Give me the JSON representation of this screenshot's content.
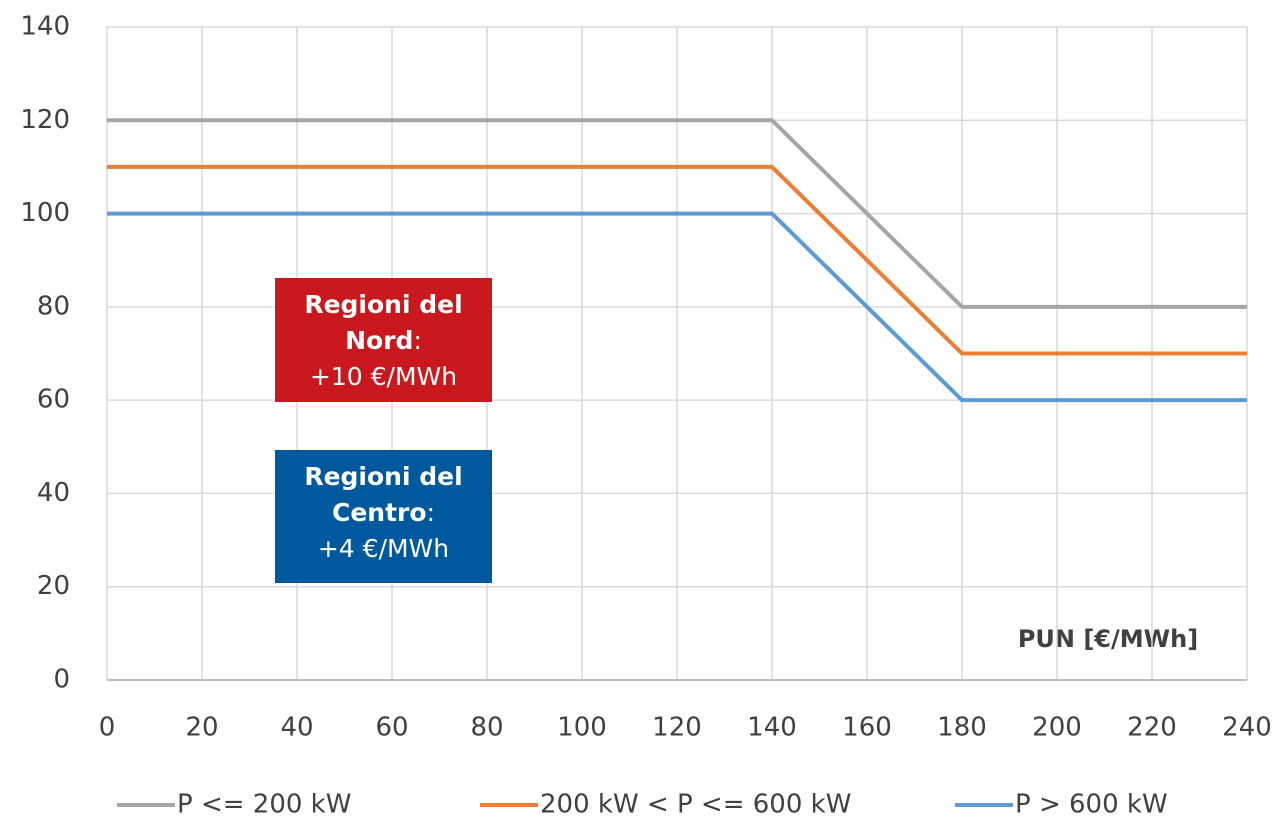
{
  "chart_data": {
    "type": "line",
    "x": [
      0,
      140,
      180,
      240
    ],
    "series": [
      {
        "name": "P <= 200 kW",
        "color": "#a5a5a5",
        "values": [
          120,
          120,
          80,
          80
        ]
      },
      {
        "name": "200 kW < P <= 600 kW",
        "color": "#ed7d31",
        "values": [
          110,
          110,
          70,
          70
        ]
      },
      {
        "name": "P > 600 kW",
        "color": "#5b9bd5",
        "values": [
          100,
          100,
          60,
          60
        ]
      }
    ],
    "xlim": [
      0,
      240
    ],
    "xticks": [
      0,
      20,
      40,
      60,
      80,
      100,
      120,
      140,
      160,
      180,
      200,
      220,
      240
    ],
    "ylim": [
      0,
      140
    ],
    "yticks": [
      0,
      20,
      40,
      60,
      80,
      100,
      120,
      140
    ],
    "grid": true,
    "legend": "bottom",
    "x_label": "PUN [€/MWh]",
    "annotations": [
      {
        "lines": [
          "Regioni del",
          "Nord"
        ],
        "suffix": ":",
        "detail": "+10 €/MWh",
        "color": "#c9191e"
      },
      {
        "lines": [
          "Regioni del",
          "Centro"
        ],
        "suffix": ":",
        "detail": "+4 €/MWh",
        "color": "#00599c"
      }
    ]
  }
}
